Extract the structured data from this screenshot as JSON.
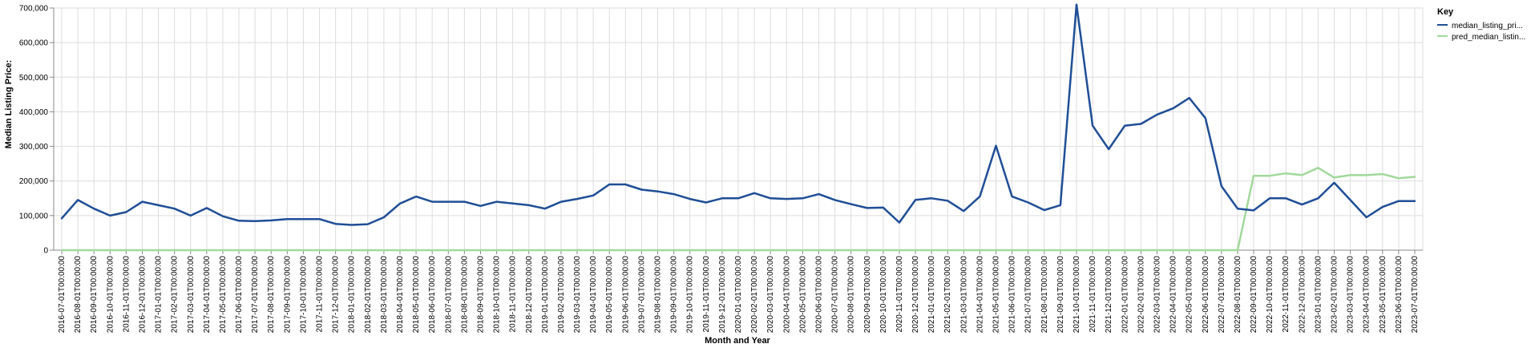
{
  "chart_data": {
    "type": "line",
    "xlabel": "Month and Year",
    "ylabel": "Median Listing Price:",
    "ylim": [
      0,
      700000
    ],
    "y_ticks": [
      0,
      100000,
      200000,
      300000,
      400000,
      500000,
      600000,
      700000
    ],
    "y_tick_labels": [
      "0",
      "100,000",
      "200,000",
      "300,000",
      "400,000",
      "500,000",
      "600,000",
      "700,000"
    ],
    "grid": true,
    "legend": {
      "title": "Key",
      "placement": "top-right"
    },
    "x": [
      "2016-07-01T00:00:00",
      "2016-08-01T00:00:00",
      "2016-09-01T00:00:00",
      "2016-10-01T00:00:00",
      "2016-11-01T00:00:00",
      "2016-12-01T00:00:00",
      "2017-01-01T00:00:00",
      "2017-02-01T00:00:00",
      "2017-03-01T00:00:00",
      "2017-04-01T00:00:00",
      "2017-05-01T00:00:00",
      "2017-06-01T00:00:00",
      "2017-07-01T00:00:00",
      "2017-08-01T00:00:00",
      "2017-09-01T00:00:00",
      "2017-10-01T00:00:00",
      "2017-11-01T00:00:00",
      "2017-12-01T00:00:00",
      "2018-01-01T00:00:00",
      "2018-02-01T00:00:00",
      "2018-03-01T00:00:00",
      "2018-04-01T00:00:00",
      "2018-05-01T00:00:00",
      "2018-06-01T00:00:00",
      "2018-07-01T00:00:00",
      "2018-08-01T00:00:00",
      "2018-09-01T00:00:00",
      "2018-10-01T00:00:00",
      "2018-11-01T00:00:00",
      "2018-12-01T00:00:00",
      "2019-01-01T00:00:00",
      "2019-02-01T00:00:00",
      "2019-03-01T00:00:00",
      "2019-04-01T00:00:00",
      "2019-05-01T00:00:00",
      "2019-06-01T00:00:00",
      "2019-07-01T00:00:00",
      "2019-08-01T00:00:00",
      "2019-09-01T00:00:00",
      "2019-10-01T00:00:00",
      "2019-11-01T00:00:00",
      "2019-12-01T00:00:00",
      "2020-01-01T00:00:00",
      "2020-02-01T00:00:00",
      "2020-03-01T00:00:00",
      "2020-04-01T00:00:00",
      "2020-05-01T00:00:00",
      "2020-06-01T00:00:00",
      "2020-07-01T00:00:00",
      "2020-08-01T00:00:00",
      "2020-09-01T00:00:00",
      "2020-10-01T00:00:00",
      "2020-11-01T00:00:00",
      "2020-12-01T00:00:00",
      "2021-01-01T00:00:00",
      "2021-02-01T00:00:00",
      "2021-03-01T00:00:00",
      "2021-04-01T00:00:00",
      "2021-05-01T00:00:00",
      "2021-06-01T00:00:00",
      "2021-07-01T00:00:00",
      "2021-08-01T00:00:00",
      "2021-09-01T00:00:00",
      "2021-10-01T00:00:00",
      "2021-11-01T00:00:00",
      "2021-12-01T00:00:00",
      "2022-01-01T00:00:00",
      "2022-02-01T00:00:00",
      "2022-03-01T00:00:00",
      "2022-04-01T00:00:00",
      "2022-05-01T00:00:00",
      "2022-06-01T00:00:00",
      "2022-07-01T00:00:00",
      "2022-08-01T00:00:00",
      "2022-09-01T00:00:00",
      "2022-10-01T00:00:00",
      "2022-11-01T00:00:00",
      "2022-12-01T00:00:00",
      "2023-01-01T00:00:00",
      "2023-02-01T00:00:00",
      "2023-03-01T00:00:00",
      "2023-04-01T00:00:00",
      "2023-05-01T00:00:00",
      "2023-06-01T00:00:00",
      "2023-07-01T00:00:00"
    ],
    "series": [
      {
        "name": "median_listing_pri...",
        "color": "#1f4e96",
        "values": [
          92000,
          145000,
          120000,
          100000,
          110000,
          140000,
          130000,
          120000,
          100000,
          122000,
          98000,
          85000,
          84000,
          86000,
          90000,
          90000,
          90000,
          76000,
          73000,
          75000,
          95000,
          135000,
          155000,
          140000,
          140000,
          140000,
          128000,
          140000,
          135000,
          130000,
          120000,
          140000,
          148000,
          158000,
          190000,
          190000,
          175000,
          170000,
          162000,
          148000,
          138000,
          150000,
          150000,
          165000,
          150000,
          148000,
          150000,
          162000,
          145000,
          133000,
          122000,
          123000,
          80000,
          145000,
          150000,
          143000,
          113000,
          155000,
          302000,
          155000,
          138000,
          116000,
          130000,
          710000,
          360000,
          292000,
          360000,
          365000,
          392000,
          410000,
          440000,
          382000,
          185000,
          120000,
          115000,
          150000,
          150000,
          132000,
          150000,
          195000,
          145000,
          95000,
          125000,
          142000,
          142000
        ]
      },
      {
        "name": "pred_median_listin...",
        "color": "#a1d99b",
        "values": [
          0,
          0,
          0,
          0,
          0,
          0,
          0,
          0,
          0,
          0,
          0,
          0,
          0,
          0,
          0,
          0,
          0,
          0,
          0,
          0,
          0,
          0,
          0,
          0,
          0,
          0,
          0,
          0,
          0,
          0,
          0,
          0,
          0,
          0,
          0,
          0,
          0,
          0,
          0,
          0,
          0,
          0,
          0,
          0,
          0,
          0,
          0,
          0,
          0,
          0,
          0,
          0,
          0,
          0,
          0,
          0,
          0,
          0,
          0,
          0,
          0,
          0,
          0,
          0,
          0,
          0,
          0,
          0,
          0,
          0,
          0,
          0,
          0,
          0,
          215000,
          215000,
          222000,
          217000,
          238000,
          210000,
          217000,
          217000,
          220000,
          208000,
          212000
        ]
      }
    ]
  }
}
